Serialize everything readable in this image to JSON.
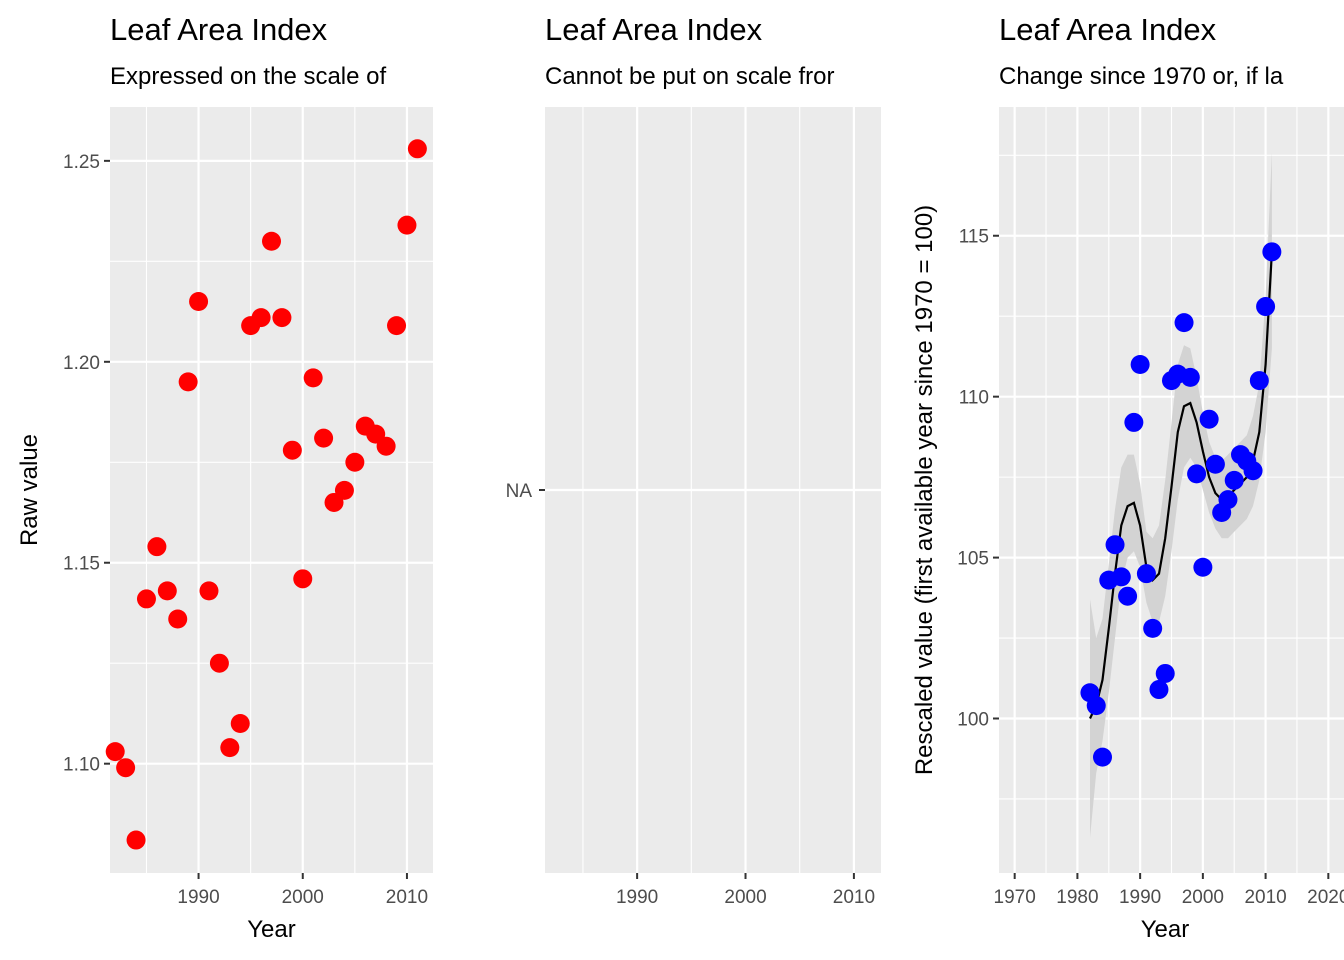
{
  "chart_data": [
    {
      "type": "scatter",
      "title": "Leaf Area Index",
      "subtitle": "Expressed on the scale of",
      "xlabel": "Year",
      "ylabel": "Raw value",
      "xlim": [
        1981.5,
        2012.5
      ],
      "ylim": [
        1.0728,
        1.2634
      ],
      "xticks": [
        1990,
        2000,
        2010
      ],
      "xminor": [
        1985,
        1995,
        2005
      ],
      "yticks": [
        1.1,
        1.15,
        1.2,
        1.25
      ],
      "ytick_labels": [
        "1.10",
        "1.15",
        "1.20",
        "1.25"
      ],
      "yminor": [
        1.125,
        1.175,
        1.225
      ],
      "grid": true,
      "point_color": "#ff0000",
      "x": [
        1982,
        1983,
        1984,
        1985,
        1986,
        1987,
        1988,
        1989,
        1990,
        1991,
        1992,
        1993,
        1994,
        1995,
        1996,
        1997,
        1998,
        1999,
        2000,
        2001,
        2002,
        2003,
        2004,
        2005,
        2006,
        2007,
        2008,
        2009,
        2010,
        2011
      ],
      "y": [
        1.103,
        1.099,
        1.081,
        1.141,
        1.154,
        1.143,
        1.136,
        1.195,
        1.215,
        1.143,
        1.125,
        1.104,
        1.11,
        1.209,
        1.211,
        1.23,
        1.211,
        1.178,
        1.146,
        1.196,
        1.181,
        1.165,
        1.168,
        1.175,
        1.184,
        1.182,
        1.179,
        1.209,
        1.234,
        1.253
      ]
    },
    {
      "type": "scatter",
      "title": "Leaf Area Index",
      "subtitle": "Cannot be put on scale fror",
      "xlabel": "",
      "ylabel": "",
      "xlim": [
        1981.5,
        2012.5
      ],
      "xticks": [
        1990,
        2000,
        2010
      ],
      "xminor": [
        1985,
        1995,
        2005
      ],
      "yticks_text": [
        "NA"
      ],
      "grid": true,
      "x": [],
      "y": []
    },
    {
      "type": "scatter",
      "title": "Leaf Area Index",
      "subtitle": "Change since 1970 or, if la",
      "xlabel": "Year",
      "ylabel": "Rescaled value (first available year since 1970 = 100)",
      "xlim": [
        1967.5,
        2022.5
      ],
      "ylim": [
        95.2,
        119.0
      ],
      "xticks": [
        1970,
        1980,
        1990,
        2000,
        2010,
        2020
      ],
      "xminor": [
        1975,
        1985,
        1995,
        2005,
        2015
      ],
      "yticks": [
        100,
        105,
        110,
        115
      ],
      "ytick_labels": [
        "100",
        "105",
        "110",
        "115"
      ],
      "yminor": [
        97.5,
        102.5,
        107.5,
        112.5,
        117.5
      ],
      "grid": true,
      "point_color": "#0000ff",
      "smooth_color": "#000000",
      "ribbon_color": "#d3d3d3",
      "x": [
        1982,
        1983,
        1984,
        1985,
        1986,
        1987,
        1988,
        1989,
        1990,
        1991,
        1992,
        1993,
        1994,
        1995,
        1996,
        1997,
        1998,
        1999,
        2000,
        2001,
        2002,
        2003,
        2004,
        2005,
        2006,
        2007,
        2008,
        2009,
        2010,
        2011
      ],
      "y": [
        100.8,
        100.4,
        98.8,
        104.3,
        105.4,
        104.4,
        103.8,
        109.2,
        111.0,
        104.5,
        102.8,
        100.9,
        101.4,
        110.5,
        110.7,
        112.3,
        110.6,
        107.6,
        104.7,
        109.3,
        107.9,
        106.4,
        106.8,
        107.4,
        108.2,
        108.0,
        107.7,
        110.5,
        112.8,
        114.5
      ],
      "smooth": {
        "x": [
          1982,
          1983,
          1984,
          1985,
          1986,
          1987,
          1988,
          1989,
          1990,
          1991,
          1992,
          1993,
          1994,
          1995,
          1996,
          1997,
          1998,
          1999,
          2000,
          2001,
          2002,
          2003,
          2004,
          2005,
          2006,
          2007,
          2008,
          2009,
          2010,
          2011
        ],
        "y": [
          100.0,
          100.4,
          101.2,
          102.8,
          104.5,
          106.0,
          106.6,
          106.7,
          106.0,
          104.7,
          104.3,
          104.5,
          105.6,
          107.2,
          108.9,
          109.7,
          109.8,
          109.2,
          108.3,
          107.5,
          107.0,
          106.8,
          106.9,
          107.1,
          107.3,
          107.5,
          108.0,
          108.9,
          111.0,
          114.5
        ],
        "lower": [
          96.3,
          98.3,
          99.3,
          100.8,
          102.5,
          104.2,
          105.0,
          105.2,
          104.7,
          103.6,
          103.0,
          103.0,
          103.8,
          105.2,
          106.8,
          107.8,
          108.1,
          107.8,
          107.1,
          106.4,
          105.9,
          105.6,
          105.6,
          105.8,
          106.0,
          106.2,
          106.6,
          107.4,
          108.9,
          111.5
        ],
        "upper": [
          103.7,
          102.5,
          103.1,
          104.8,
          106.5,
          107.8,
          108.2,
          108.2,
          107.3,
          105.8,
          105.6,
          106.0,
          107.4,
          109.2,
          111.0,
          111.6,
          111.5,
          110.6,
          109.5,
          108.6,
          108.1,
          108.0,
          108.2,
          108.4,
          108.6,
          108.8,
          109.4,
          110.4,
          113.1,
          117.6
        ]
      }
    }
  ]
}
